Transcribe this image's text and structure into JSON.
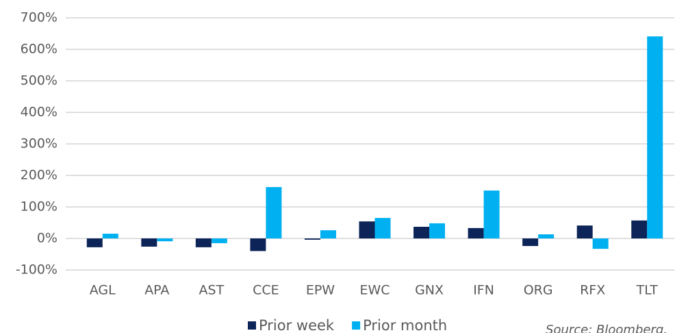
{
  "chart_data": {
    "type": "bar",
    "categories": [
      "AGL",
      "APA",
      "AST",
      "CCE",
      "EPW",
      "EWC",
      "GNX",
      "IFN",
      "ORG",
      "RFX",
      "TLT"
    ],
    "series": [
      {
        "name": "Prior week",
        "color": "#0d2458",
        "values": [
          -28,
          -26,
          -28,
          -40,
          -4,
          54,
          37,
          33,
          -24,
          41,
          57
        ]
      },
      {
        "name": "Prior month",
        "color": "#00b0f0",
        "values": [
          15,
          -9,
          -15,
          163,
          26,
          65,
          48,
          152,
          13,
          -33,
          641
        ]
      }
    ],
    "ylim": [
      -100,
      700
    ],
    "yticks": [
      {
        "value": -100,
        "label": "-100%"
      },
      {
        "value": 0,
        "label": "0%"
      },
      {
        "value": 100,
        "label": "100%"
      },
      {
        "value": 200,
        "label": "200%"
      },
      {
        "value": 300,
        "label": "300%"
      },
      {
        "value": 400,
        "label": "400%"
      },
      {
        "value": 500,
        "label": "500%"
      },
      {
        "value": 600,
        "label": "600%"
      },
      {
        "value": 700,
        "label": "700%"
      }
    ],
    "grid": true,
    "legend": "bottom",
    "annotation": "Source: Bloomberg."
  }
}
